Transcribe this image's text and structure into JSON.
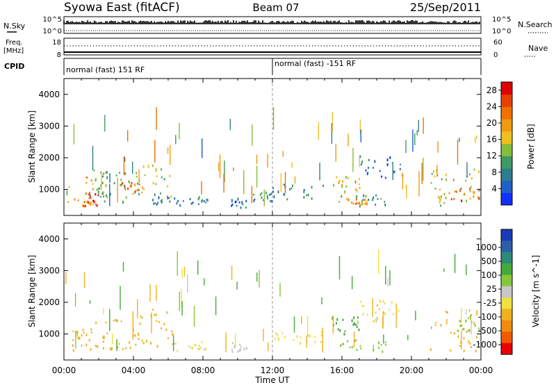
{
  "header": {
    "station": "Syowa East (fitACF)",
    "beam": "Beam 07",
    "date": "25/Sep/2011"
  },
  "status_panels": {
    "nsky": {
      "label": "N.Sky",
      "scale_top": "10^5",
      "scale_bottom": "10^0"
    },
    "nsearch": {
      "label": "N.Search",
      "scale_top": "10^5",
      "scale_bottom": "10^0"
    },
    "freq": {
      "label_line1": "Freq.",
      "label_line2": "[MHz]",
      "tick_top": "18",
      "tick_bottom": "8"
    },
    "nave": {
      "label": "Nave",
      "tick_top": "60",
      "tick_bottom": "0"
    },
    "cpid": {
      "label": "CPID",
      "mode_1": "normal (fast) 151 RF",
      "mode_2": "normal (fast) -151 RF"
    }
  },
  "colors": {
    "power_scale": [
      "#1030ff",
      "#2060c8",
      "#2e7d8a",
      "#3e9a62",
      "#86be3c",
      "#f0c020",
      "#f09a10",
      "#f07000",
      "#e84000",
      "#e00000"
    ],
    "velocity_scale": [
      "#1a3ab8",
      "#2c5fa8",
      "#2e8a78",
      "#46a83a",
      "#84c83a",
      "#c8c8c8",
      "#f0e040",
      "#f0b020",
      "#f08c10",
      "#f05a00",
      "#e80000"
    ]
  },
  "chart_data": [
    {
      "type": "heatmap",
      "name": "power",
      "xlabel": "Time UT",
      "ylabel": "Slant Range [km]",
      "x_ticks": [
        "00:00",
        "04:00",
        "08:00",
        "12:00",
        "16:00",
        "20:00",
        "00:00"
      ],
      "xlim_hours": [
        0,
        24
      ],
      "y_ticks": [
        1000,
        2000,
        3000,
        4000
      ],
      "ylim_km": [
        180,
        4500
      ],
      "colorbar": {
        "label": "Power [dB]",
        "ticks": [
          4,
          8,
          12,
          16,
          20,
          24,
          28
        ],
        "range": [
          0,
          30
        ]
      },
      "regions": [
        {
          "t0": 0.2,
          "t1": 1.7,
          "r0": 500,
          "r1": 1500,
          "level": 20
        },
        {
          "t0": 1.0,
          "t1": 2.0,
          "r0": 500,
          "r1": 900,
          "level": 27
        },
        {
          "t0": 1.4,
          "t1": 2.6,
          "r0": 600,
          "r1": 1800,
          "level": 12
        },
        {
          "t0": 2.0,
          "t1": 4.0,
          "r0": 600,
          "r1": 1600,
          "level": 10
        },
        {
          "t0": 3.3,
          "t1": 4.5,
          "r0": 900,
          "r1": 1300,
          "level": 22
        },
        {
          "t0": 4.0,
          "t1": 6.3,
          "r0": 800,
          "r1": 1800,
          "level": 14
        },
        {
          "t0": 5.0,
          "t1": 6.5,
          "r0": 550,
          "r1": 900,
          "level": 8
        },
        {
          "t0": 6.5,
          "t1": 8.3,
          "r0": 500,
          "r1": 800,
          "level": 8
        },
        {
          "t0": 9.6,
          "t1": 10.5,
          "r0": 450,
          "r1": 750,
          "level": 4
        },
        {
          "t0": 10.8,
          "t1": 12.0,
          "r0": 650,
          "r1": 1000,
          "level": 8
        },
        {
          "t0": 12.0,
          "t1": 15.0,
          "r0": 700,
          "r1": 1200,
          "level": 8
        },
        {
          "t0": 15.4,
          "t1": 17.0,
          "r0": 900,
          "r1": 1600,
          "level": 18
        },
        {
          "t0": 15.5,
          "t1": 18.5,
          "r0": 480,
          "r1": 850,
          "level": 10
        },
        {
          "t0": 16.0,
          "t1": 17.6,
          "r0": 550,
          "r1": 750,
          "level": 20
        },
        {
          "t0": 17.0,
          "t1": 19.5,
          "r0": 1400,
          "r1": 2100,
          "level": 6
        },
        {
          "t0": 21.0,
          "t1": 23.9,
          "r0": 500,
          "r1": 1800,
          "level": 14
        },
        {
          "t0": 22.0,
          "t1": 23.9,
          "r0": 600,
          "r1": 1100,
          "level": 24
        }
      ]
    },
    {
      "type": "heatmap",
      "name": "velocity",
      "xlabel": "Time UT",
      "ylabel": "Slant Range [km]",
      "x_ticks": [
        "00:00",
        "04:00",
        "08:00",
        "12:00",
        "16:00",
        "20:00",
        "00:00"
      ],
      "xlim_hours": [
        0,
        24
      ],
      "y_ticks": [
        1000,
        2000,
        3000,
        4000
      ],
      "ylim_km": [
        180,
        4500
      ],
      "colorbar": {
        "label": "Velocity [m s^-1]",
        "ticks": [
          1000,
          500,
          100,
          25,
          -25,
          -100,
          -500,
          -1000
        ]
      },
      "regions": [
        {
          "t0": 0.2,
          "t1": 2.0,
          "r0": 500,
          "r1": 1300,
          "level": -300
        },
        {
          "t0": 1.5,
          "t1": 4.0,
          "r0": 500,
          "r1": 1500,
          "level": -200
        },
        {
          "t0": 4.0,
          "t1": 6.3,
          "r0": 600,
          "r1": 1800,
          "level": -350
        },
        {
          "t0": 6.3,
          "t1": 8.3,
          "r0": 500,
          "r1": 800,
          "level": -30
        },
        {
          "t0": 9.6,
          "t1": 10.5,
          "r0": 450,
          "r1": 750,
          "level": 5
        },
        {
          "t0": 12.0,
          "t1": 15.0,
          "r0": 700,
          "r1": 1100,
          "level": -60
        },
        {
          "t0": 15.4,
          "t1": 17.0,
          "r0": 900,
          "r1": 1600,
          "level": 400
        },
        {
          "t0": 15.5,
          "t1": 18.5,
          "r0": 480,
          "r1": 850,
          "level": 80
        },
        {
          "t0": 17.0,
          "t1": 19.5,
          "r0": 1400,
          "r1": 2100,
          "level": -80
        },
        {
          "t0": 21.0,
          "t1": 23.9,
          "r0": 500,
          "r1": 1800,
          "level": -250
        },
        {
          "t0": 22.5,
          "t1": 23.9,
          "r0": 1100,
          "r1": 1600,
          "level": 60
        }
      ]
    }
  ]
}
